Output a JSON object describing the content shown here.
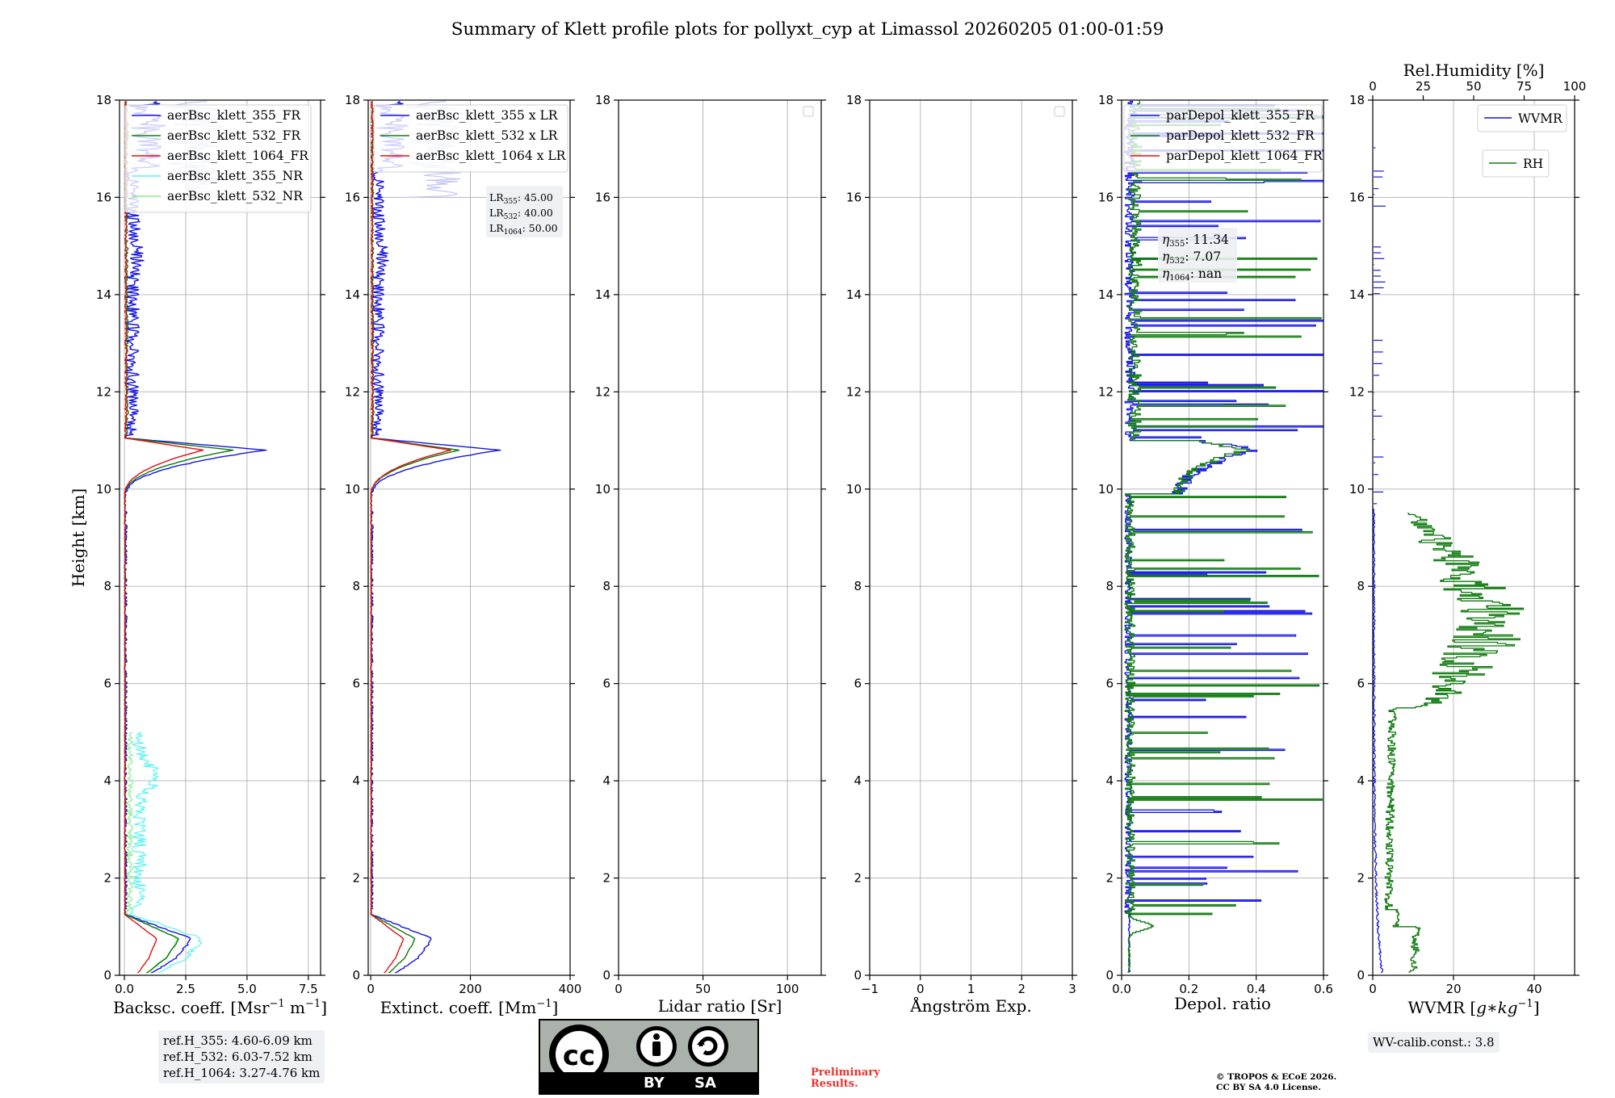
{
  "title": "Summary of Klett profile plots for pollyxt_cyp at Limassol 20260205 01:00-01:59",
  "colors": {
    "c355": "#1515e8",
    "c532": "#0e7a0e",
    "c1064": "#e01010",
    "c355nr": "#5cf2f2",
    "c532nr": "#86f086",
    "bsc355light": "#c4c8f2"
  },
  "chart_data": [
    {
      "type": "line",
      "id": "bsc",
      "xlabel": "Backsc. coeff. [Msr$^{-1}$ m$^{-1}$]",
      "xlabel_text": "Backsc. coeff. [Msr",
      "xlabel_sup1": "−1",
      "xlabel_mid": " m",
      "xlabel_sup2": "−1",
      "xlabel_end": "]",
      "ylabel": "Height [km]",
      "xlim": [
        -0.2,
        8.0
      ],
      "ylim": [
        0,
        18
      ],
      "xticks": [
        0,
        2.5,
        5,
        7.5
      ],
      "xtick_labels": [
        "0.0",
        "2.5",
        "5.0",
        "7.5"
      ],
      "yticks": [
        0,
        2,
        4,
        6,
        8,
        10,
        12,
        14,
        16,
        18
      ],
      "legend": [
        "aerBsc_klett_355_FR",
        "aerBsc_klett_532_FR",
        "aerBsc_klett_1064_FR",
        "aerBsc_klett_355_NR",
        "aerBsc_klett_532_NR"
      ],
      "series": [
        {
          "name": "aerBsc_klett_355_FR",
          "color": "c355",
          "profile": "bsc355"
        },
        {
          "name": "aerBsc_klett_532_FR",
          "color": "c532",
          "profile": "bsc532"
        },
        {
          "name": "aerBsc_klett_1064_FR",
          "color": "c1064",
          "profile": "bsc1064"
        },
        {
          "name": "aerBsc_klett_355_NR",
          "color": "c355nr",
          "profile": "bsc355nr"
        },
        {
          "name": "aerBsc_klett_532_NR",
          "color": "c532nr",
          "profile": "bsc532nr"
        }
      ],
      "ref_heights": [
        "ref.H_355: 4.60-6.09 km",
        "ref.H_532: 6.03-7.52 km",
        "ref.H_1064: 3.27-4.76 km"
      ]
    },
    {
      "type": "line",
      "id": "ext",
      "xlabel": "Extinct. coeff. [Mm$^{-1}$]",
      "xlabel_text": "Extinct. coeff. [Mm",
      "xlabel_sup1": "−1",
      "xlabel_end": "]",
      "xlim": [
        -5,
        400
      ],
      "ylim": [
        0,
        18
      ],
      "xticks": [
        0,
        200,
        400
      ],
      "xtick_labels": [
        "0",
        "200",
        "400"
      ],
      "yticks": [
        0,
        2,
        4,
        6,
        8,
        10,
        12,
        14,
        16,
        18
      ],
      "legend": [
        "aerBsc_klett_355 x LR",
        "aerBsc_klett_532 x LR",
        "aerBsc_klett_1064 x LR"
      ],
      "series": [
        {
          "name": "aerBsc_klett_355 x LR",
          "color": "c355",
          "lr": 45
        },
        {
          "name": "aerBsc_klett_532 x LR",
          "color": "c532",
          "lr": 40
        },
        {
          "name": "aerBsc_klett_1064 x LR",
          "color": "c1064",
          "lr": 50
        }
      ],
      "lidar_ratios": [
        {
          "label": "LR",
          "sub": "355",
          "value": "45.00"
        },
        {
          "label": "LR",
          "sub": "532",
          "value": "40.00"
        },
        {
          "label": "LR",
          "sub": "1064",
          "value": "50.00"
        }
      ]
    },
    {
      "type": "line",
      "id": "lr",
      "xlabel": "Lidar ratio [Sr]",
      "xlim": [
        0,
        120
      ],
      "ylim": [
        0,
        18
      ],
      "xticks": [
        0,
        50,
        100
      ],
      "xtick_labels": [
        "0",
        "50",
        "100"
      ],
      "yticks": [
        0,
        2,
        4,
        6,
        8,
        10,
        12,
        14,
        16,
        18
      ],
      "series": []
    },
    {
      "type": "line",
      "id": "ang",
      "xlabel": "Ångström Exp.",
      "xlim": [
        -1,
        3
      ],
      "ylim": [
        0,
        18
      ],
      "xticks": [
        -1,
        0,
        1,
        2,
        3
      ],
      "xtick_labels": [
        "−1",
        "0",
        "1",
        "2",
        "3"
      ],
      "yticks": [
        0,
        2,
        4,
        6,
        8,
        10,
        12,
        14,
        16,
        18
      ],
      "series": []
    },
    {
      "type": "line",
      "id": "dep",
      "xlabel": "Depol. ratio",
      "xlim": [
        0,
        0.6
      ],
      "ylim": [
        0,
        18
      ],
      "xticks": [
        0,
        0.2,
        0.4,
        0.6
      ],
      "xtick_labels": [
        "0.0",
        "0.2",
        "0.4",
        "0.6"
      ],
      "yticks": [
        0,
        2,
        4,
        6,
        8,
        10,
        12,
        14,
        16,
        18
      ],
      "legend": [
        "parDepol_klett_355_FR",
        "parDepol_klett_532_FR",
        "parDepol_klett_1064_FR"
      ],
      "series": [
        {
          "name": "parDepol_klett_355_FR",
          "color": "c355",
          "profile": "dep355"
        },
        {
          "name": "parDepol_klett_532_FR",
          "color": "c532",
          "profile": "dep532"
        },
        {
          "name": "parDepol_klett_1064_FR",
          "color": "c1064",
          "profile": "none"
        }
      ],
      "eta": [
        {
          "sub": "355",
          "value": "11.34"
        },
        {
          "sub": "532",
          "value": "7.07"
        },
        {
          "sub": "1064",
          "value": "nan"
        }
      ]
    },
    {
      "type": "line",
      "id": "wv",
      "xlabel": "WVMR [$g*kg^{-1}$]",
      "xlabel_text": "WVMR [",
      "xlabel_italic": "g∗kg",
      "xlabel_sup1": "−1",
      "xlabel_end": "]",
      "top_xlabel": "Rel.Humidity [%]",
      "xlim": [
        0,
        50
      ],
      "top_xlim": [
        0,
        100
      ],
      "ylim": [
        0,
        18
      ],
      "xticks": [
        0,
        20,
        40
      ],
      "xtick_labels": [
        "0",
        "20",
        "40"
      ],
      "top_xticks": [
        0,
        25,
        50,
        75,
        100
      ],
      "top_xtick_labels": [
        "0",
        "25",
        "50",
        "75",
        "100"
      ],
      "yticks": [
        0,
        2,
        4,
        6,
        8,
        10,
        12,
        14,
        16,
        18
      ],
      "legend": [
        "WVMR",
        "RH"
      ],
      "series": [
        {
          "name": "WVMR",
          "color": "c355",
          "profile": "wvmr"
        },
        {
          "name": "RH",
          "color": "c532",
          "profile": "rh"
        }
      ],
      "wv_calib": "WV-calib.const.: 3.8"
    }
  ],
  "footer": {
    "preliminary_line1": "Preliminary",
    "preliminary_line2": "Results.",
    "copyright_line1": "© TROPOS & ECoE 2026.",
    "copyright_line2": "CC BY SA 4.0 License.",
    "cc_badge": "cc",
    "cc_by": "BY",
    "cc_sa": "SA"
  }
}
